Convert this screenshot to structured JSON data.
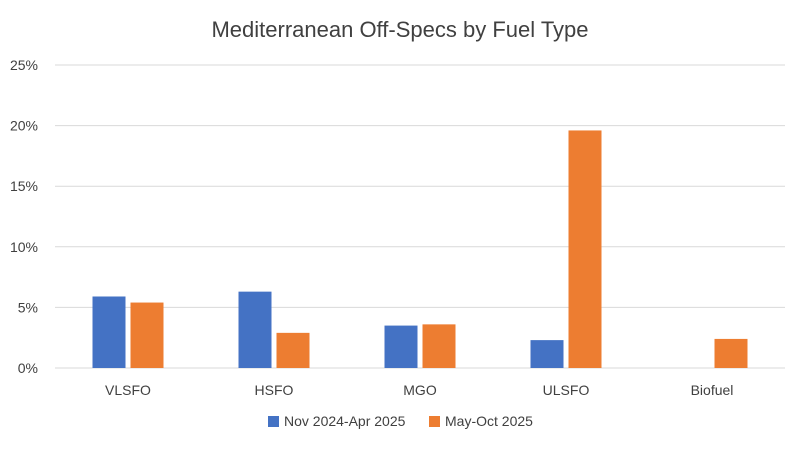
{
  "chart_data": {
    "type": "bar",
    "title": "Mediterranean Off-Specs by Fuel Type",
    "xlabel": "",
    "ylabel": "",
    "categories": [
      "VLSFO",
      "HSFO",
      "MGO",
      "ULSFO",
      "Biofuel"
    ],
    "series": [
      {
        "name": "Nov 2024-Apr 2025",
        "color": "#4472C4",
        "values": [
          5.9,
          6.3,
          3.5,
          2.3,
          null
        ]
      },
      {
        "name": "May-Oct 2025",
        "color": "#ED7D31",
        "values": [
          5.4,
          2.9,
          3.6,
          19.6,
          2.4
        ]
      }
    ],
    "ylim": [
      0,
      25
    ],
    "yticks": [
      0,
      5,
      10,
      15,
      20,
      25
    ],
    "ytick_labels": [
      "0%",
      "5%",
      "10%",
      "15%",
      "20%",
      "25%"
    ],
    "grid": true,
    "legend_position": "bottom"
  }
}
